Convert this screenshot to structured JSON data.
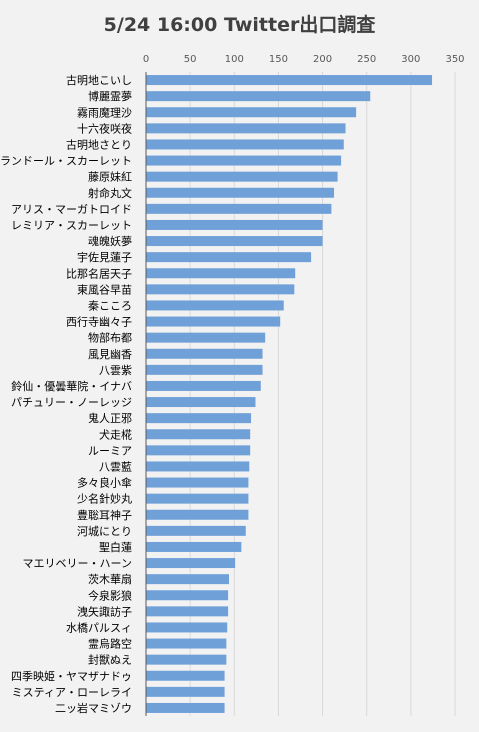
{
  "chart_data": {
    "type": "bar",
    "orientation": "horizontal",
    "title": "5/24 16:00 Twitter出口調査",
    "xlabel": "",
    "ylabel": "",
    "xlim": [
      0,
      350
    ],
    "xticks": [
      0,
      50,
      100,
      150,
      200,
      250,
      300,
      350
    ],
    "tick_labels": [
      "0",
      "50",
      "100",
      "150",
      "200",
      "250",
      "300",
      "350"
    ],
    "axis_position": "top",
    "grid": true,
    "bar_color": "#6fa0d8",
    "categories": [
      "古明地こいし",
      "博麗霊夢",
      "霧雨魔理沙",
      "十六夜咲夜",
      "古明地さとり",
      "フランドール・スカーレット",
      "藤原妹紅",
      "射命丸文",
      "アリス・マーガトロイド",
      "レミリア・スカーレット",
      "魂魄妖夢",
      "宇佐見蓮子",
      "比那名居天子",
      "東風谷早苗",
      "秦こころ",
      "西行寺幽々子",
      "物部布都",
      "風見幽香",
      "八雲紫",
      "鈴仙・優曇華院・イナバ",
      "パチュリー・ノーレッジ",
      "鬼人正邪",
      "犬走椛",
      "ルーミア",
      "八雲藍",
      "多々良小傘",
      "少名針妙丸",
      "豊聡耳神子",
      "河城にとり",
      "聖白蓮",
      "マエリベリー・ハーン",
      "茨木華扇",
      "今泉影狼",
      "洩矢諏訪子",
      "水橋パルスィ",
      "霊烏路空",
      "封獣ぬえ",
      "四季映姫・ヤマザナドゥ",
      "ミスティア・ローレライ",
      "二ッ岩マミゾウ"
    ],
    "values": [
      324,
      254,
      238,
      226,
      224,
      221,
      217,
      213,
      210,
      200,
      200,
      187,
      169,
      168,
      156,
      152,
      135,
      132,
      132,
      130,
      124,
      119,
      118,
      118,
      117,
      116,
      116,
      116,
      113,
      108,
      101,
      94,
      93,
      93,
      92,
      91,
      91,
      89,
      89,
      89
    ]
  }
}
